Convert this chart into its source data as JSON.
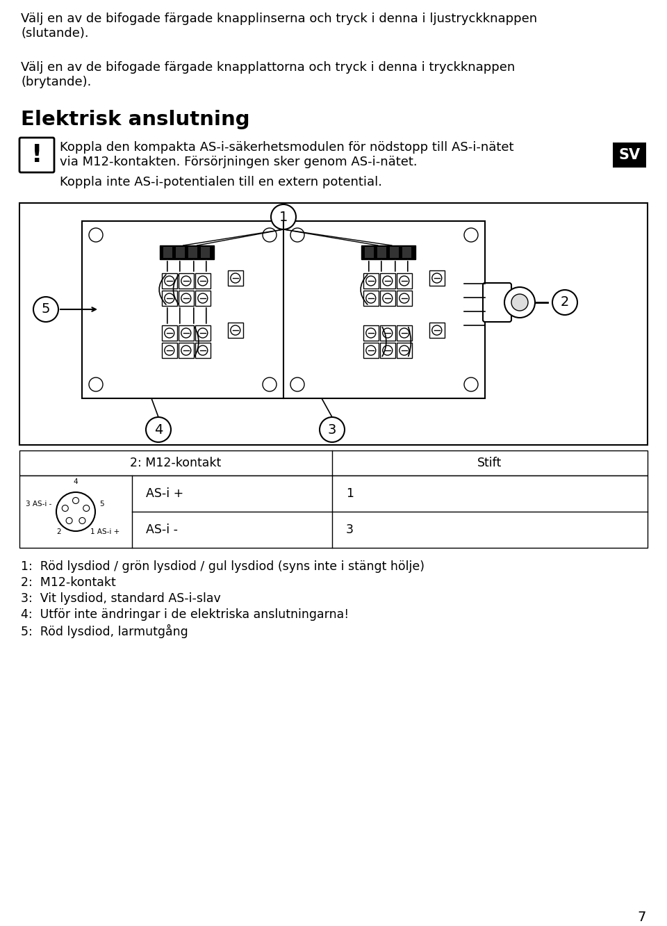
{
  "bg_color": "#ffffff",
  "text_color": "#000000",
  "para1": "Välj en av de bifogade färgade knapplinserna och tryck i denna i ljustryckknappen\n(slutande).",
  "para2": "Välj en av de bifogade färgade knapplattorna och tryck i denna i tryckknappen\n(brytande).",
  "heading": "Elektrisk anslutning",
  "warning_text": "Koppla den kompakta AS-i-säkerhetsmodulen för nödstopp till AS-i-nätet\nvia M12-kontakten. Försörjningen sker genom AS-i-nätet.",
  "warning_text2": "Koppla inte AS-i-potentialen till en extern potential.",
  "sv_label": "SV",
  "table_header_col1": "2: M12-kontakt",
  "table_header_col2": "Stift",
  "table_row1_col2": "AS-i +",
  "table_row1_col3": "1",
  "table_row2_col2": "AS-i -",
  "table_row2_col3": "3",
  "footnotes": [
    "1:  Röd lysdiod / grön lysdiod / gul lysdiod (syns inte i stängt hölje)",
    "2:  M12-kontakt",
    "3:  Vit lysdiod, standard AS-i-slav",
    "4:  Utför inte ändringar i de elektriska anslutningarna!",
    "5:  Röd lysdiod, larmutgång"
  ],
  "page_number": "7",
  "font_size_body": 13.0,
  "font_size_heading": 21,
  "font_size_table": 12.5,
  "font_size_footnote": 12.5
}
